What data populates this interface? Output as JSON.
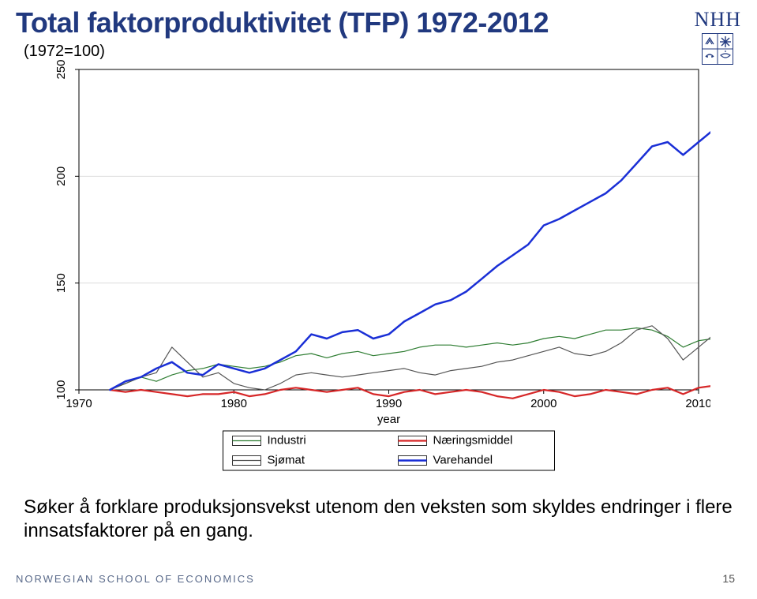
{
  "title": "Total faktorproduktivitet (TFP) 1972-2012",
  "title_color": "#21397f",
  "subtitle": "(1972=100)",
  "caption": "Søker å forklare produksjonsvekst utenom den veksten som skyldes endringer i flere innsatsfaktorer på en gang.",
  "footer_left": "NORWEGIAN SCHOOL OF ECONOMICS",
  "footer_left_color": "#5a6a8a",
  "page_number": "15",
  "logo_text": "NHH",
  "logo_color": "#21397f",
  "chart": {
    "type": "line",
    "background_color": "#ffffff",
    "plot_border_color": "#000000",
    "grid_color": "#dcdcdc",
    "grid_on": true,
    "axis_font_size": 15,
    "axis_label_font_size": 15,
    "xlabel": "year",
    "xlim": [
      1970,
      2010
    ],
    "xtick_positions": [
      1970,
      1980,
      1990,
      2000,
      2010
    ],
    "xtick_labels": [
      "1970",
      "1980",
      "1990",
      "2000",
      "2010"
    ],
    "ylim": [
      100,
      250
    ],
    "ytick_positions": [
      100,
      150,
      200,
      250
    ],
    "ytick_labels": [
      "100",
      "150",
      "200",
      "250"
    ],
    "ytick_rotation": -90,
    "legend": {
      "border_color": "#000000",
      "background": "#ffffff",
      "font_size": 15,
      "items": [
        {
          "label": "Industri",
          "color": "#2e7d32",
          "width": 1.2
        },
        {
          "label": "Næringsmiddel",
          "color": "#d62728",
          "width": 2.2
        },
        {
          "label": "Sjømat",
          "color": "#555555",
          "width": 1.2
        },
        {
          "label": "Varehandel",
          "color": "#1a2fd6",
          "width": 2.5
        }
      ]
    },
    "series": [
      {
        "name": "Industri",
        "color": "#2e7d32",
        "width": 1.2,
        "x": [
          1972,
          1973,
          1974,
          1975,
          1976,
          1977,
          1978,
          1979,
          1980,
          1981,
          1982,
          1983,
          1984,
          1985,
          1986,
          1987,
          1988,
          1989,
          1990,
          1991,
          1992,
          1993,
          1994,
          1995,
          1996,
          1997,
          1998,
          1999,
          2000,
          2001,
          2002,
          2003,
          2004,
          2005,
          2006,
          2007,
          2008,
          2009,
          2010,
          2011,
          2012
        ],
        "y": [
          100,
          103,
          106,
          104,
          107,
          109,
          110,
          112,
          111,
          110,
          111,
          113,
          116,
          117,
          115,
          117,
          118,
          116,
          117,
          118,
          120,
          121,
          121,
          120,
          121,
          122,
          121,
          122,
          124,
          125,
          124,
          126,
          128,
          128,
          129,
          128,
          125,
          120,
          123,
          124,
          124
        ]
      },
      {
        "name": "Naeringsmiddel",
        "color": "#d62728",
        "width": 2.2,
        "x": [
          1972,
          1973,
          1974,
          1975,
          1976,
          1977,
          1978,
          1979,
          1980,
          1981,
          1982,
          1983,
          1984,
          1985,
          1986,
          1987,
          1988,
          1989,
          1990,
          1991,
          1992,
          1993,
          1994,
          1995,
          1996,
          1997,
          1998,
          1999,
          2000,
          2001,
          2002,
          2003,
          2004,
          2005,
          2006,
          2007,
          2008,
          2009,
          2010,
          2011,
          2012
        ],
        "y": [
          100,
          99,
          100,
          99,
          98,
          97,
          98,
          98,
          99,
          97,
          98,
          100,
          101,
          100,
          99,
          100,
          101,
          98,
          97,
          99,
          100,
          98,
          99,
          100,
          99,
          97,
          96,
          98,
          100,
          99,
          97,
          98,
          100,
          99,
          98,
          100,
          101,
          98,
          101,
          102,
          103
        ]
      },
      {
        "name": "Sjomat",
        "color": "#555555",
        "width": 1.2,
        "x": [
          1972,
          1973,
          1974,
          1975,
          1976,
          1977,
          1978,
          1979,
          1980,
          1981,
          1982,
          1983,
          1984,
          1985,
          1986,
          1987,
          1988,
          1989,
          1990,
          1991,
          1992,
          1993,
          1994,
          1995,
          1996,
          1997,
          1998,
          1999,
          2000,
          2001,
          2002,
          2003,
          2004,
          2005,
          2006,
          2007,
          2008,
          2009,
          2010,
          2011,
          2012
        ],
        "y": [
          100,
          103,
          106,
          108,
          120,
          113,
          106,
          108,
          103,
          101,
          100,
          103,
          107,
          108,
          107,
          106,
          107,
          108,
          109,
          110,
          108,
          107,
          109,
          110,
          111,
          113,
          114,
          116,
          118,
          120,
          117,
          116,
          118,
          122,
          128,
          130,
          124,
          114,
          120,
          126,
          122
        ]
      },
      {
        "name": "Varehandel",
        "color": "#1a2fd6",
        "width": 2.5,
        "x": [
          1972,
          1973,
          1974,
          1975,
          1976,
          1977,
          1978,
          1979,
          1980,
          1981,
          1982,
          1983,
          1984,
          1985,
          1986,
          1987,
          1988,
          1989,
          1990,
          1991,
          1992,
          1993,
          1994,
          1995,
          1996,
          1997,
          1998,
          1999,
          2000,
          2001,
          2002,
          2003,
          2004,
          2005,
          2006,
          2007,
          2008,
          2009,
          2010,
          2011,
          2012
        ],
        "y": [
          100,
          104,
          106,
          110,
          113,
          108,
          107,
          112,
          110,
          108,
          110,
          114,
          118,
          126,
          124,
          127,
          128,
          124,
          126,
          132,
          136,
          140,
          142,
          146,
          152,
          158,
          163,
          168,
          177,
          180,
          184,
          188,
          192,
          198,
          206,
          214,
          216,
          210,
          216,
          222,
          226
        ]
      }
    ]
  }
}
